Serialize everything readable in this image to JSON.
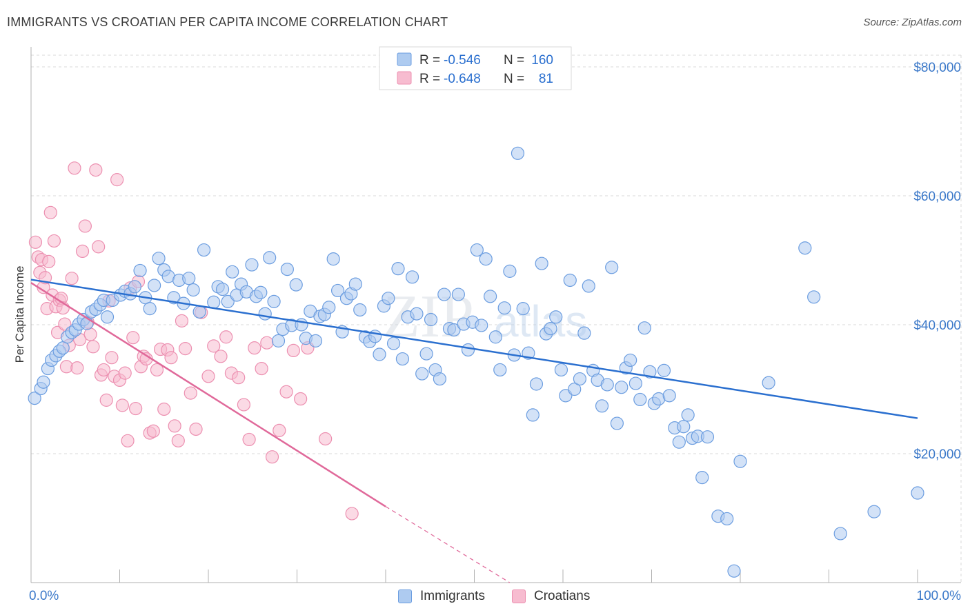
{
  "title": "IMMIGRANTS VS CROATIAN PER CAPITA INCOME CORRELATION CHART",
  "source": "Source: ZipAtlas.com",
  "watermark": {
    "part1": "ZIP",
    "part2": "atlas"
  },
  "colors": {
    "blue_fill": "#aecbf0",
    "blue_stroke": "#6b9de0",
    "blue_line": "#2a6fcf",
    "pink_fill": "#f7bcd0",
    "pink_stroke": "#ec8fb0",
    "pink_line": "#e0699a",
    "axis_label_blue": "#3a78c9",
    "grid": "#d9d9d9"
  },
  "stats_legend": [
    {
      "r_label": "R =",
      "r_value": "-0.546",
      "n_label": "N =",
      "n_value": "160",
      "color": "blue"
    },
    {
      "r_label": "R =",
      "r_value": "-0.648",
      "n_label": "N =",
      "n_value": "81",
      "color": "pink"
    }
  ],
  "bottom_legend": [
    {
      "label": "Immigrants",
      "color": "blue"
    },
    {
      "label": "Croatians",
      "color": "pink"
    }
  ],
  "chart_data": {
    "type": "scatter",
    "title": "IMMIGRANTS VS CROATIAN PER CAPITA INCOME CORRELATION CHART",
    "ylabel": "Per Capita Income",
    "xlabel": "",
    "xlim": [
      0,
      100
    ],
    "ylim": [
      0,
      80000
    ],
    "x_tick_labels": [
      {
        "value": 0,
        "label": "0.0%"
      },
      {
        "value": 100,
        "label": "100.0%"
      }
    ],
    "y_tick_labels": [
      {
        "value": 20000,
        "label": "$20,000"
      },
      {
        "value": 40000,
        "label": "$40,000"
      },
      {
        "value": 60000,
        "label": "$60,000"
      },
      {
        "value": 80000,
        "label": "$80,000"
      }
    ],
    "grid": true,
    "legend_position": "top-center",
    "series": [
      {
        "name": "Immigrants",
        "color": "#aecbf0",
        "trend": {
          "x": [
            0,
            100
          ],
          "y": [
            47000,
            25500
          ]
        },
        "points": [
          [
            0.4,
            28600
          ],
          [
            1.1,
            30100
          ],
          [
            1.4,
            31100
          ],
          [
            1.9,
            33200
          ],
          [
            2.3,
            34500
          ],
          [
            2.8,
            35200
          ],
          [
            3.2,
            35900
          ],
          [
            3.6,
            36400
          ],
          [
            4.1,
            38100
          ],
          [
            4.6,
            38800
          ],
          [
            5.0,
            39200
          ],
          [
            5.4,
            40100
          ],
          [
            5.9,
            40800
          ],
          [
            6.3,
            40200
          ],
          [
            6.8,
            42000
          ],
          [
            7.3,
            42400
          ],
          [
            7.8,
            43100
          ],
          [
            8.2,
            43800
          ],
          [
            8.6,
            41200
          ],
          [
            9.2,
            43800
          ],
          [
            10.1,
            44600
          ],
          [
            10.6,
            45200
          ],
          [
            11.2,
            44800
          ],
          [
            11.7,
            45900
          ],
          [
            12.3,
            48400
          ],
          [
            12.9,
            44200
          ],
          [
            13.4,
            42500
          ],
          [
            13.9,
            46100
          ],
          [
            14.4,
            50300
          ],
          [
            15.0,
            48500
          ],
          [
            15.5,
            47500
          ],
          [
            16.1,
            44200
          ],
          [
            16.7,
            46900
          ],
          [
            17.2,
            43300
          ],
          [
            17.8,
            47200
          ],
          [
            18.3,
            45400
          ],
          [
            19.0,
            42000
          ],
          [
            19.5,
            51600
          ],
          [
            20.6,
            43500
          ],
          [
            21.1,
            45900
          ],
          [
            21.6,
            45500
          ],
          [
            22.2,
            43600
          ],
          [
            22.7,
            48200
          ],
          [
            23.2,
            44600
          ],
          [
            23.7,
            46300
          ],
          [
            24.3,
            45100
          ],
          [
            24.9,
            49300
          ],
          [
            25.4,
            44400
          ],
          [
            25.9,
            45000
          ],
          [
            26.4,
            41700
          ],
          [
            26.9,
            50400
          ],
          [
            27.4,
            43600
          ],
          [
            27.9,
            37500
          ],
          [
            28.4,
            39300
          ],
          [
            28.9,
            48600
          ],
          [
            29.4,
            39900
          ],
          [
            29.9,
            46200
          ],
          [
            30.5,
            40000
          ],
          [
            31.0,
            37900
          ],
          [
            31.5,
            42100
          ],
          [
            32.1,
            37500
          ],
          [
            32.6,
            41300
          ],
          [
            33.1,
            41600
          ],
          [
            33.6,
            42700
          ],
          [
            34.1,
            50200
          ],
          [
            34.6,
            45300
          ],
          [
            35.1,
            38900
          ],
          [
            35.6,
            44100
          ],
          [
            36.1,
            44800
          ],
          [
            36.6,
            46300
          ],
          [
            37.1,
            42300
          ],
          [
            37.7,
            38100
          ],
          [
            38.2,
            37400
          ],
          [
            38.8,
            38200
          ],
          [
            39.3,
            35400
          ],
          [
            39.8,
            42900
          ],
          [
            40.3,
            44100
          ],
          [
            40.9,
            37100
          ],
          [
            41.4,
            48700
          ],
          [
            41.9,
            34700
          ],
          [
            42.5,
            41200
          ],
          [
            43.0,
            47400
          ],
          [
            43.5,
            41700
          ],
          [
            44.1,
            32400
          ],
          [
            44.6,
            35500
          ],
          [
            45.1,
            40800
          ],
          [
            45.6,
            33000
          ],
          [
            46.1,
            31600
          ],
          [
            46.6,
            44700
          ],
          [
            47.2,
            39400
          ],
          [
            47.7,
            39200
          ],
          [
            48.2,
            44700
          ],
          [
            48.8,
            40100
          ],
          [
            49.3,
            36100
          ],
          [
            49.8,
            40400
          ],
          [
            50.3,
            51600
          ],
          [
            50.8,
            39900
          ],
          [
            51.3,
            50200
          ],
          [
            51.8,
            44400
          ],
          [
            52.4,
            38100
          ],
          [
            52.9,
            33000
          ],
          [
            53.4,
            42600
          ],
          [
            54.0,
            48300
          ],
          [
            54.5,
            35300
          ],
          [
            54.9,
            66600
          ],
          [
            55.5,
            42500
          ],
          [
            56.1,
            35600
          ],
          [
            56.6,
            26000
          ],
          [
            57.0,
            30800
          ],
          [
            57.6,
            49500
          ],
          [
            58.1,
            38600
          ],
          [
            58.6,
            39400
          ],
          [
            59.2,
            41200
          ],
          [
            59.8,
            33000
          ],
          [
            60.3,
            29000
          ],
          [
            60.8,
            46900
          ],
          [
            61.3,
            30000
          ],
          [
            61.9,
            31600
          ],
          [
            62.4,
            38700
          ],
          [
            62.9,
            46000
          ],
          [
            63.4,
            32900
          ],
          [
            63.9,
            31400
          ],
          [
            64.4,
            27400
          ],
          [
            65.0,
            30700
          ],
          [
            65.5,
            48900
          ],
          [
            66.1,
            24700
          ],
          [
            66.6,
            30300
          ],
          [
            67.1,
            33300
          ],
          [
            67.6,
            34500
          ],
          [
            68.2,
            30900
          ],
          [
            68.7,
            28400
          ],
          [
            69.2,
            39500
          ],
          [
            69.8,
            32700
          ],
          [
            70.3,
            27800
          ],
          [
            70.8,
            28500
          ],
          [
            71.4,
            32900
          ],
          [
            72.0,
            29000
          ],
          [
            72.6,
            24000
          ],
          [
            73.1,
            21800
          ],
          [
            73.6,
            24200
          ],
          [
            74.1,
            26000
          ],
          [
            74.6,
            22400
          ],
          [
            75.2,
            22700
          ],
          [
            75.7,
            16300
          ],
          [
            76.3,
            22600
          ],
          [
            77.5,
            10300
          ],
          [
            78.5,
            9900
          ],
          [
            79.3,
            1800
          ],
          [
            80.0,
            18800
          ],
          [
            83.2,
            31000
          ],
          [
            87.3,
            51900
          ],
          [
            88.3,
            44300
          ],
          [
            91.3,
            7600
          ],
          [
            95.1,
            11000
          ],
          [
            100.0,
            13900
          ]
        ]
      },
      {
        "name": "Croatians",
        "color": "#f7bcd0",
        "trend": {
          "x": [
            0,
            40
          ],
          "y": [
            46500,
            11800
          ]
        },
        "trend_dashed": {
          "x": [
            40,
            54
          ],
          "y": [
            11800,
            0
          ]
        },
        "points": [
          [
            0.5,
            52800
          ],
          [
            0.8,
            50500
          ],
          [
            1.0,
            48100
          ],
          [
            1.2,
            50100
          ],
          [
            1.4,
            45800
          ],
          [
            1.6,
            47300
          ],
          [
            1.8,
            42500
          ],
          [
            2.0,
            49800
          ],
          [
            2.2,
            57400
          ],
          [
            2.4,
            44600
          ],
          [
            2.6,
            53000
          ],
          [
            2.8,
            42800
          ],
          [
            3.0,
            38800
          ],
          [
            3.2,
            43800
          ],
          [
            3.4,
            44100
          ],
          [
            3.6,
            42600
          ],
          [
            3.8,
            40100
          ],
          [
            4.0,
            33500
          ],
          [
            4.3,
            36800
          ],
          [
            4.6,
            47200
          ],
          [
            4.9,
            64300
          ],
          [
            5.2,
            33300
          ],
          [
            5.5,
            37700
          ],
          [
            5.8,
            51400
          ],
          [
            6.1,
            55300
          ],
          [
            6.4,
            40400
          ],
          [
            6.7,
            38500
          ],
          [
            7.0,
            36600
          ],
          [
            7.3,
            64000
          ],
          [
            7.6,
            52100
          ],
          [
            7.9,
            32200
          ],
          [
            8.2,
            33000
          ],
          [
            8.5,
            28300
          ],
          [
            8.8,
            43700
          ],
          [
            9.1,
            34900
          ],
          [
            9.4,
            32000
          ],
          [
            9.7,
            62500
          ],
          [
            10.0,
            31400
          ],
          [
            10.3,
            27500
          ],
          [
            10.6,
            32500
          ],
          [
            10.9,
            22000
          ],
          [
            11.2,
            45700
          ],
          [
            11.5,
            38000
          ],
          [
            11.8,
            27000
          ],
          [
            12.1,
            46700
          ],
          [
            12.4,
            33500
          ],
          [
            12.7,
            35100
          ],
          [
            13.0,
            34700
          ],
          [
            13.4,
            23200
          ],
          [
            13.8,
            23500
          ],
          [
            14.2,
            33000
          ],
          [
            14.6,
            36200
          ],
          [
            15.0,
            26900
          ],
          [
            15.4,
            36100
          ],
          [
            15.8,
            34900
          ],
          [
            16.2,
            24300
          ],
          [
            16.6,
            22000
          ],
          [
            17.0,
            40600
          ],
          [
            17.4,
            36300
          ],
          [
            18.0,
            29400
          ],
          [
            18.6,
            23800
          ],
          [
            19.2,
            41900
          ],
          [
            20.0,
            32000
          ],
          [
            20.6,
            36700
          ],
          [
            21.4,
            35100
          ],
          [
            22.0,
            38100
          ],
          [
            22.6,
            32500
          ],
          [
            23.4,
            31800
          ],
          [
            24.0,
            27600
          ],
          [
            24.6,
            22200
          ],
          [
            25.2,
            36400
          ],
          [
            26.0,
            33200
          ],
          [
            26.6,
            37200
          ],
          [
            27.2,
            19500
          ],
          [
            28.0,
            23600
          ],
          [
            28.8,
            29600
          ],
          [
            29.6,
            36000
          ],
          [
            30.4,
            28500
          ],
          [
            31.2,
            36400
          ],
          [
            33.2,
            22300
          ],
          [
            36.2,
            10700
          ]
        ]
      }
    ]
  }
}
